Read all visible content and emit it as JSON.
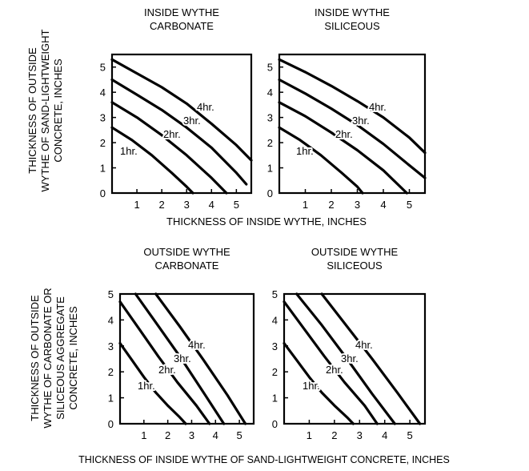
{
  "figure": {
    "top_xlabel": "THICKNESS OF INSIDE WYTHE, INCHES",
    "top_ylabel": [
      "THICKNESS OF OUTSIDE",
      "WYTHE OF SAND-LIGHTWEIGHT",
      "CONCRETE, INCHES"
    ],
    "bottom_xlabel": "THICKNESS OF INSIDE WYTHE OF SAND-LIGHTWEIGHT CONCRETE, INCHES",
    "bottom_ylabel": [
      "THICKNESS OF OUTSIDE",
      "WYTHE OF CARBONATE OR",
      "SILICEOUS AGGREGATE",
      "CONCRETE, INCHES"
    ]
  },
  "chart_data": [
    {
      "type": "line",
      "title": [
        "INSIDE WYTHE",
        "CARBONATE"
      ],
      "xlim": [
        0,
        5.6
      ],
      "ylim": [
        0,
        5.5
      ],
      "xticks": [
        1,
        2,
        3,
        4,
        5
      ],
      "yticks": [
        0,
        1,
        2,
        3,
        4,
        5
      ],
      "grid": false,
      "series": [
        {
          "name": "1hr.",
          "x": [
            0,
            0.8,
            1.6,
            2.4,
            3.0,
            3.25
          ],
          "y": [
            2.6,
            2.1,
            1.5,
            0.8,
            0.25,
            0
          ]
        },
        {
          "name": "2hr.",
          "x": [
            0,
            1.0,
            2.0,
            3.0,
            4.0,
            4.6
          ],
          "y": [
            3.6,
            3.0,
            2.3,
            1.5,
            0.6,
            0
          ]
        },
        {
          "name": "3hr.",
          "x": [
            0,
            1.0,
            2.0,
            3.0,
            4.0,
            5.0,
            5.4
          ],
          "y": [
            4.5,
            3.9,
            3.3,
            2.6,
            1.8,
            0.8,
            0.35
          ]
        },
        {
          "name": "4hr.",
          "x": [
            0,
            1.0,
            2.0,
            3.0,
            4.0,
            5.0,
            5.6
          ],
          "y": [
            5.3,
            4.75,
            4.2,
            3.55,
            2.75,
            1.9,
            1.3
          ]
        }
      ]
    },
    {
      "type": "line",
      "title": [
        "INSIDE WYTHE",
        "SILICEOUS"
      ],
      "xlim": [
        0,
        5.6
      ],
      "ylim": [
        0,
        5.5
      ],
      "xticks": [
        1,
        2,
        3,
        4,
        5
      ],
      "yticks": [
        0,
        1,
        2,
        3,
        4,
        5
      ],
      "grid": false,
      "series": [
        {
          "name": "1hr.",
          "x": [
            0,
            0.8,
            1.6,
            2.4,
            3.0,
            3.2
          ],
          "y": [
            2.6,
            2.1,
            1.5,
            0.8,
            0.25,
            0
          ]
        },
        {
          "name": "2hr.",
          "x": [
            0,
            1.0,
            2.0,
            3.0,
            4.0,
            4.9
          ],
          "y": [
            3.6,
            3.05,
            2.4,
            1.7,
            0.9,
            0
          ]
        },
        {
          "name": "3hr.",
          "x": [
            0,
            1.0,
            2.0,
            3.0,
            4.0,
            5.0,
            5.6
          ],
          "y": [
            4.5,
            3.95,
            3.35,
            2.7,
            1.95,
            1.1,
            0.6
          ]
        },
        {
          "name": "4hr.",
          "x": [
            0,
            1.0,
            2.0,
            3.0,
            4.0,
            5.0,
            5.6
          ],
          "y": [
            5.3,
            4.8,
            4.25,
            3.65,
            3.0,
            2.2,
            1.6
          ]
        }
      ]
    },
    {
      "type": "line",
      "title": [
        "OUTSIDE WYTHE",
        "CARBONATE"
      ],
      "xlim": [
        0,
        5.6
      ],
      "ylim": [
        0,
        5
      ],
      "xticks": [
        1,
        2,
        3,
        4,
        5
      ],
      "yticks": [
        0,
        1,
        2,
        3,
        4,
        5
      ],
      "grid": false,
      "series": [
        {
          "name": "1hr.",
          "x": [
            0,
            0.5,
            1.0,
            1.5,
            2.0,
            2.5,
            2.75
          ],
          "y": [
            3.1,
            2.45,
            1.8,
            1.2,
            0.7,
            0.25,
            0
          ]
        },
        {
          "name": "2hr.",
          "x": [
            0,
            0.8,
            1.6,
            2.4,
            3.2,
            3.75
          ],
          "y": [
            4.7,
            3.65,
            2.6,
            1.6,
            0.7,
            0
          ]
        },
        {
          "name": "3hr.",
          "x": [
            0.65,
            1.5,
            2.5,
            3.5,
            4.35
          ],
          "y": [
            5,
            3.9,
            2.6,
            1.2,
            0
          ]
        },
        {
          "name": "4hr.",
          "x": [
            1.5,
            2.5,
            3.5,
            4.5,
            5.25
          ],
          "y": [
            5,
            3.75,
            2.45,
            1.1,
            0
          ]
        }
      ]
    },
    {
      "type": "line",
      "title": [
        "OUTSIDE WYTHE",
        "SILICEOUS"
      ],
      "xlim": [
        0,
        5.6
      ],
      "ylim": [
        0,
        5
      ],
      "xticks": [
        1,
        2,
        3,
        4,
        5
      ],
      "yticks": [
        0,
        1,
        2,
        3,
        4,
        5
      ],
      "grid": false,
      "series": [
        {
          "name": "1hr.",
          "x": [
            0,
            0.5,
            1.0,
            1.5,
            2.0,
            2.5,
            2.75
          ],
          "y": [
            3.1,
            2.45,
            1.8,
            1.2,
            0.7,
            0.25,
            0
          ]
        },
        {
          "name": "2hr.",
          "x": [
            0,
            0.8,
            1.6,
            2.4,
            3.2,
            3.7
          ],
          "y": [
            4.7,
            3.65,
            2.6,
            1.6,
            0.7,
            0
          ]
        },
        {
          "name": "3hr.",
          "x": [
            0.5,
            1.5,
            2.5,
            3.5,
            4.4
          ],
          "y": [
            5,
            3.8,
            2.5,
            1.15,
            0
          ]
        },
        {
          "name": "4hr.",
          "x": [
            1.5,
            2.5,
            3.5,
            4.5,
            5.4
          ],
          "y": [
            5,
            3.75,
            2.5,
            1.2,
            0
          ]
        }
      ]
    }
  ]
}
